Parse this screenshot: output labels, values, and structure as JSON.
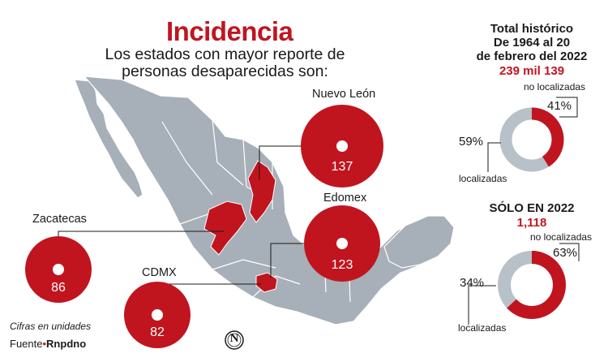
{
  "title": "Incidencia",
  "subtitle": "Los estados con mayor reporte de personas desaparecidas son:",
  "states": [
    {
      "name": "Nuevo León",
      "value": "137"
    },
    {
      "name": "Edomex",
      "value": "123"
    },
    {
      "name": "Zacatecas",
      "value": "86"
    },
    {
      "name": "CDMX",
      "value": "82"
    }
  ],
  "note": "Cifras en unidades",
  "source_label": "Fuente",
  "source_name": "Rnpdno",
  "logo_letter": "N",
  "historic": {
    "line1": "Total histórico",
    "line2": "De 1964 al 20",
    "line3": "de febrero del 2022",
    "total": "239 mil 139",
    "not_located_label": "no localizadas",
    "not_located_pct": "41%",
    "located_pct": "59%",
    "located_label": "localizadas",
    "not_located_fraction": 0.41
  },
  "year2022": {
    "heading": "SÓLO EN 2022",
    "total": "1,118",
    "not_located_label": "no localizadas",
    "not_located_pct": "63%",
    "located_pct": "34%",
    "located_label": "localizadas",
    "not_located_fraction": 0.63
  },
  "colors": {
    "accent": "#c0151f",
    "map": "#a7afb8",
    "donut_gray": "#b8c0c8"
  }
}
